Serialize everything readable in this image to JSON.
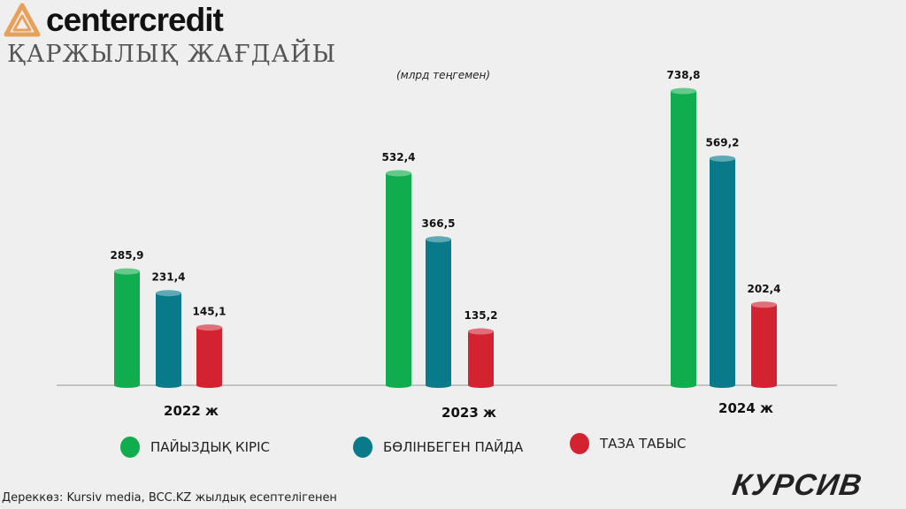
{
  "header": {
    "brand": "centercredit",
    "brand_color": "#e8a15a",
    "subtitle": "ҚАРЖЫЛЫҚ ЖАҒДАЙЫ",
    "units": "(млрд теңгемен)"
  },
  "legend": [
    {
      "label": "ПАЙЫЗДЫҚ КІРІС",
      "color": "#0fad4e"
    },
    {
      "label": "БӨЛІНБЕГЕН ПАЙДА",
      "color": "#087a8a"
    },
    {
      "label": "ТАЗА ТАБЫС",
      "color": "#d32230"
    }
  ],
  "footer": {
    "source": "Дереккөз: Kursiv media, BCC.KZ жылдық есептелігенен",
    "publisher": "КУРСИВ"
  },
  "chart_data": {
    "type": "bar",
    "title": "ҚАРЖЫЛЫҚ ЖАҒДАЙЫ",
    "subtitle": "(млрд теңгемен)",
    "xlabel": "",
    "ylabel": "",
    "categories": [
      "2022 ж",
      "2023 ж",
      "2024 ж"
    ],
    "category_labels": [
      "2022 ж",
      "2023 ж",
      "2024 ж"
    ],
    "series": [
      {
        "name": "ПАЙЫЗДЫҚ КІРІС",
        "values": [
          285.9,
          532.4,
          738.8
        ],
        "labels": [
          "285,9",
          "532,4",
          "738,8"
        ],
        "color": "#0fad4e"
      },
      {
        "name": "БӨЛІНБЕГЕН ПАЙДА",
        "values": [
          231.4,
          366.5,
          569.2
        ],
        "labels": [
          "231,4",
          "366,5",
          "569,2"
        ],
        "color": "#087a8a"
      },
      {
        "name": "ТАЗА ТАБЫС",
        "values": [
          145.1,
          135.2,
          202.4
        ],
        "labels": [
          "145,1",
          "135,2",
          "202,4"
        ],
        "color": "#d32230"
      }
    ],
    "ylim": [
      0,
      738.8
    ],
    "grid": false,
    "legend_position": "bottom"
  }
}
